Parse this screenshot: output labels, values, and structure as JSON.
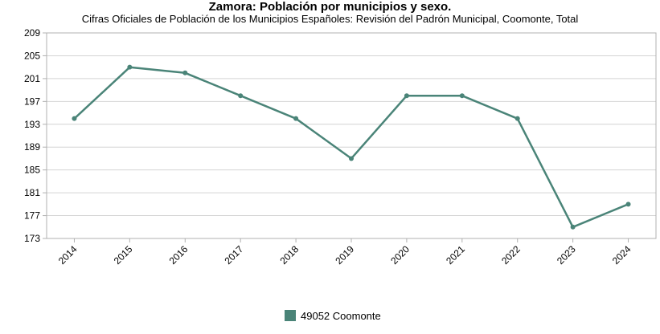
{
  "chart_data": {
    "type": "line",
    "title": "Zamora: Población por municipios y sexo.",
    "subtitle": "Cifras Oficiales de Población de los Municipios Españoles: Revisión del Padrón Municipal, Coomonte, Total",
    "xlabel": "",
    "ylabel": "",
    "categories": [
      "2014",
      "2015",
      "2016",
      "2017",
      "2018",
      "2019",
      "2020",
      "2021",
      "2022",
      "2023",
      "2024"
    ],
    "series": [
      {
        "name": "49052 Coomonte",
        "color": "#4a8478",
        "values": [
          194,
          203,
          202,
          198,
          194,
          187,
          198,
          198,
          194,
          175,
          179
        ]
      }
    ],
    "yticks": [
      173,
      177,
      181,
      185,
      189,
      193,
      197,
      201,
      205,
      209
    ],
    "ylim": [
      173,
      209
    ],
    "grid": true,
    "legend": "bottom-center"
  }
}
